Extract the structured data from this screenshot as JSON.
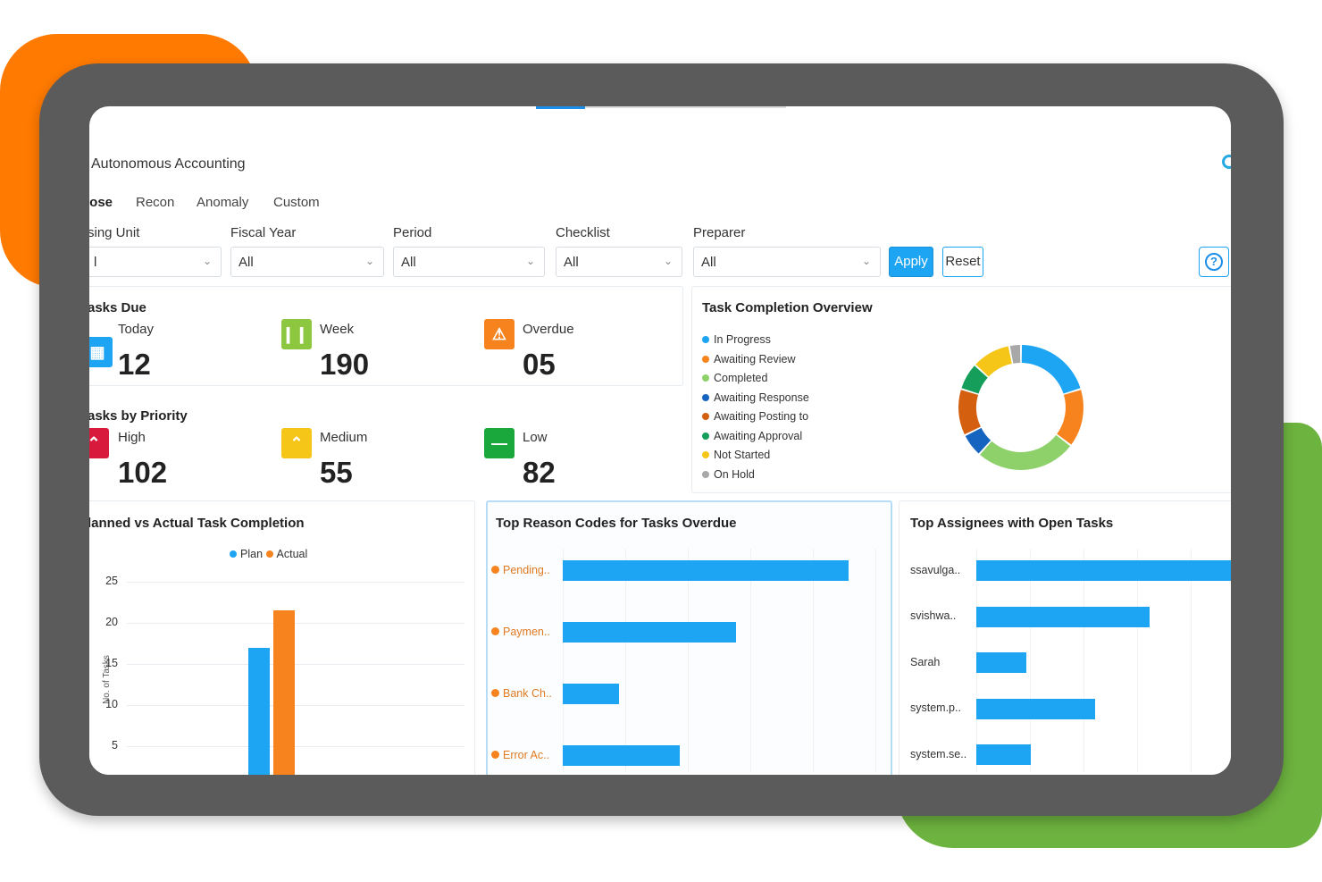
{
  "app": {
    "title": "Autonomous Accounting"
  },
  "tabs": [
    {
      "label": "lose",
      "active": true
    },
    {
      "label": "Recon",
      "active": false
    },
    {
      "label": "Anomaly",
      "active": false
    },
    {
      "label": "Custom",
      "active": false
    }
  ],
  "filters": [
    {
      "label": "sing Unit",
      "value": "l"
    },
    {
      "label": "Fiscal Year",
      "value": "All"
    },
    {
      "label": "Period",
      "value": "All"
    },
    {
      "label": "Checklist",
      "value": "All"
    },
    {
      "label": "Preparer",
      "value": "All"
    }
  ],
  "buttons": {
    "apply": "Apply",
    "reset": "Reset",
    "help_glyph": "?"
  },
  "tasks_due": {
    "title": "asks Due",
    "items": [
      {
        "label": "Today",
        "value": "12",
        "icon": "calendar-icon",
        "color": "#1da4f2"
      },
      {
        "label": "Week",
        "value": "190",
        "icon": "week-bars-icon",
        "color": "#8dc63f"
      },
      {
        "label": "Overdue",
        "value": "05",
        "icon": "warning-icon",
        "color": "#f7831f"
      }
    ]
  },
  "tasks_priority": {
    "title": "asks by Priority",
    "items": [
      {
        "label": "High",
        "value": "102",
        "icon": "double-chevron-up-icon",
        "color": "#d81b3c"
      },
      {
        "label": "Medium",
        "value": "55",
        "icon": "chevron-up-icon",
        "color": "#f5c518"
      },
      {
        "label": "Low",
        "value": "82",
        "icon": "minus-icon",
        "color": "#1aa83c"
      }
    ]
  },
  "completion_overview": {
    "title": "Task Completion Overview",
    "legend": [
      {
        "label": "In Progress",
        "color": "#1da4f2"
      },
      {
        "label": "Awaiting Review",
        "color": "#f7831f"
      },
      {
        "label": "Completed",
        "color": "#8ed16b"
      },
      {
        "label": "Awaiting Response",
        "color": "#1565c0"
      },
      {
        "label": "Awaiting Posting to",
        "color": "#d35f0f"
      },
      {
        "label": "Awaiting Approval",
        "color": "#149e5a"
      },
      {
        "label": "Not Started",
        "color": "#f5c518"
      },
      {
        "label": "On Hold",
        "color": "#a8a8a8"
      }
    ]
  },
  "plan_actual": {
    "title": "lanned vs Actual Task Completion",
    "legend": [
      {
        "label": "Plan",
        "color": "#1da4f2"
      },
      {
        "label": "Actual",
        "color": "#f7831f"
      }
    ],
    "ylabel_fragment": "No. of Tasks"
  },
  "reason_codes": {
    "title": "Top Reason Codes for Tasks Overdue"
  },
  "assignees": {
    "title": "Top Assignees with Open Tasks"
  },
  "chart_data": [
    {
      "type": "pie",
      "title": "Task Completion Overview",
      "labels": [
        "In Progress",
        "Awaiting Review",
        "Completed",
        "Awaiting Response",
        "Awaiting Posting to",
        "Awaiting Approval",
        "Not Started",
        "On Hold"
      ],
      "values": [
        20,
        15,
        26,
        6,
        12,
        7,
        10,
        3
      ],
      "colors": [
        "#1da4f2",
        "#f7831f",
        "#8ed16b",
        "#1565c0",
        "#d35f0f",
        "#149e5a",
        "#f5c518",
        "#a8a8a8"
      ]
    },
    {
      "type": "bar",
      "title": "lanned vs Actual Task Completion",
      "ylabel": "No. of Tasks",
      "ylim": [
        0,
        25
      ],
      "yticks": [
        5,
        10,
        15,
        20,
        25
      ],
      "series": [
        {
          "name": "Plan",
          "values": [
            17
          ],
          "color": "#1da4f2"
        },
        {
          "name": "Actual",
          "values": [
            21.5
          ],
          "color": "#f7831f"
        }
      ]
    },
    {
      "type": "bar",
      "orientation": "horizontal",
      "title": "Top Reason Codes for Tasks Overdue",
      "categories": [
        "Pending..",
        "Paymen..",
        "Bank Ch..",
        "Error Ac.."
      ],
      "values": [
        61,
        37,
        12,
        25
      ],
      "color": "#1da4f2"
    },
    {
      "type": "bar",
      "orientation": "horizontal",
      "title": "Top Assignees with Open Tasks",
      "categories": [
        "ssavulga..",
        "svishwa..",
        "Sarah",
        "system.p..",
        "system.se.."
      ],
      "values": [
        57,
        38,
        11,
        26,
        12
      ],
      "color": "#1da4f2"
    }
  ]
}
